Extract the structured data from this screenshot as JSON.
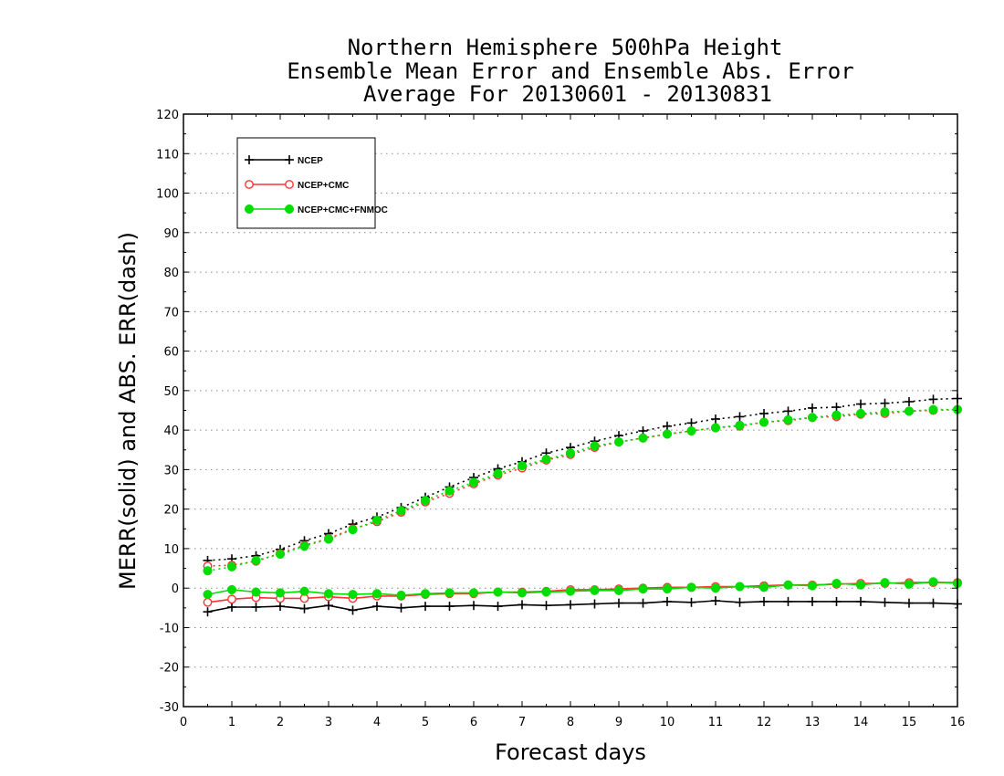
{
  "chart_data": {
    "type": "line",
    "title": [
      "Northern Hemisphere 500hPa Height",
      "Ensemble Mean Error and Ensemble Abs. Error",
      "Average For 20130601 - 20130831"
    ],
    "xlabel": "Forecast days",
    "ylabel": "MERR(solid) and ABS. ERR(dash)",
    "xlim": [
      0,
      16
    ],
    "ylim": [
      -30,
      120
    ],
    "xticks": [
      "0",
      "1",
      "2",
      "3",
      "4",
      "5",
      "6",
      "7",
      "8",
      "9",
      "10",
      "11",
      "12",
      "13",
      "14",
      "15",
      "16"
    ],
    "yticks": [
      "-30",
      "-20",
      "-10",
      "0",
      "10",
      "20",
      "30",
      "40",
      "50",
      "60",
      "70",
      "80",
      "90",
      "100",
      "110",
      "120"
    ],
    "grid": "horizontal dotted",
    "legend_position": "top-left",
    "x": [
      0.5,
      1,
      1.5,
      2,
      2.5,
      3,
      3.5,
      4,
      4.5,
      5,
      5.5,
      6,
      6.5,
      7,
      7.5,
      8,
      8.5,
      9,
      9.5,
      10,
      10.5,
      11,
      11.5,
      12,
      12.5,
      13,
      13.5,
      14,
      14.5,
      15,
      15.5,
      16
    ],
    "series": [
      {
        "name": "NCEP",
        "color": "#000000",
        "marker": "plus",
        "merr": [
          -6,
          -4.8,
          -4.8,
          -4.6,
          -5.2,
          -4.4,
          -5.6,
          -4.6,
          -5,
          -4.6,
          -4.6,
          -4.4,
          -4.6,
          -4.2,
          -4.4,
          -4.2,
          -4,
          -3.8,
          -3.8,
          -3.4,
          -3.6,
          -3.2,
          -3.6,
          -3.4,
          -3.4,
          -3.4,
          -3.4,
          -3.4,
          -3.6,
          -3.8,
          -3.8,
          -4
        ],
        "abs_err": [
          7,
          7.4,
          8.2,
          9.8,
          12,
          13.8,
          16.2,
          18,
          20.4,
          23,
          25.6,
          28,
          30.2,
          32,
          34.2,
          35.6,
          37.2,
          38.6,
          39.8,
          41,
          41.8,
          42.8,
          43.4,
          44.2,
          44.8,
          45.6,
          45.8,
          46.6,
          46.8,
          47.2,
          47.8,
          48
        ]
      },
      {
        "name": "NCEP+CMC",
        "color": "#ff3333",
        "marker": "open-circle",
        "merr": [
          -3.6,
          -2.8,
          -2.4,
          -2.6,
          -2.6,
          -2.2,
          -2.6,
          -2,
          -2,
          -1.6,
          -1.4,
          -1.4,
          -1,
          -1,
          -0.8,
          -0.4,
          -0.4,
          -0.2,
          0,
          0.2,
          0.2,
          0.4,
          0.4,
          0.6,
          0.8,
          0.8,
          1,
          1.2,
          1.2,
          1.4,
          1.4,
          1.4
        ],
        "abs_err": [
          5.6,
          5.8,
          6.8,
          8.8,
          10.8,
          12.6,
          15,
          16.8,
          19.2,
          21.8,
          24,
          26.4,
          28.6,
          30.4,
          32.4,
          33.8,
          35.6,
          37,
          38,
          39,
          39.8,
          40.6,
          41,
          42,
          42.4,
          43.2,
          43.4,
          44,
          44.2,
          44.8,
          45,
          45.2
        ]
      },
      {
        "name": "NCEP+CMC+FNMOC",
        "color": "#00dd00",
        "marker": "filled-circle",
        "merr": [
          -1.6,
          -0.4,
          -1,
          -1.2,
          -0.8,
          -1.4,
          -1.6,
          -1.4,
          -1.8,
          -1.4,
          -1.2,
          -1.2,
          -1,
          -1.2,
          -1,
          -0.8,
          -0.6,
          -0.6,
          -0.2,
          -0.2,
          0.2,
          0,
          0.4,
          0.2,
          0.8,
          0.6,
          1.2,
          0.8,
          1.4,
          1,
          1.6,
          1.2
        ],
        "abs_err": [
          4.4,
          5.4,
          7,
          8.6,
          10.6,
          12.4,
          14.8,
          17.2,
          19.6,
          22.2,
          24.6,
          26.8,
          29,
          31,
          32.6,
          34.2,
          36,
          37,
          38,
          39,
          39.8,
          40.6,
          41.2,
          42,
          42.6,
          43.2,
          43.8,
          44.2,
          44.6,
          44.8,
          45.2,
          45.2
        ]
      }
    ]
  }
}
